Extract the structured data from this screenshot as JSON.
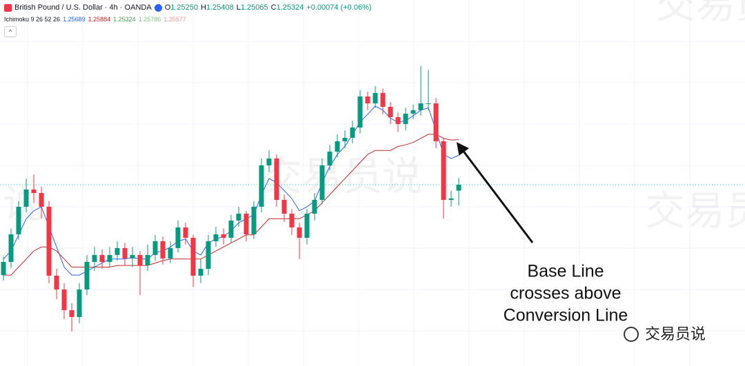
{
  "header": {
    "symbol": "British Pound / U.S. Dollar · 4h · OANDA",
    "ohlc": [
      {
        "label": "O",
        "value": "1.25250"
      },
      {
        "label": "H",
        "value": "1.25408"
      },
      {
        "label": "L",
        "value": "1.25065"
      },
      {
        "label": "C",
        "value": "1.25324"
      }
    ],
    "change": "+0.00074 (+0.06%)"
  },
  "indicator": {
    "name": "Ichimoku 9 26 52 26",
    "values": [
      {
        "value": "1.25689",
        "color": "#2962ff"
      },
      {
        "value": "1.25884",
        "color": "#c62828"
      },
      {
        "value": "1.25324",
        "color": "#43a047"
      },
      {
        "value": "1.25786",
        "color": "#81c784"
      },
      {
        "value": "1.25577",
        "color": "#ef9a9a"
      }
    ]
  },
  "chart_data": {
    "type": "candlestick",
    "ylim": [
      1.2307,
      1.2762
    ],
    "up_color": "#089981",
    "down_color": "#f23645",
    "open": [
      1.242,
      1.24364,
      1.24707,
      1.2505,
      1.25264,
      1.25221,
      1.2505,
      1.24193,
      1.24021,
      1.23764,
      1.23679,
      1.24021,
      1.24364,
      1.2445,
      1.24364,
      1.2445,
      1.24536,
      1.24407,
      1.2445,
      1.24321,
      1.2445,
      1.24621,
      1.24407,
      1.24536,
      1.24793,
      1.24664,
      1.24193,
      1.24278,
      1.24621,
      1.24707,
      1.24664,
      1.24878,
      1.24964,
      1.24707,
      1.2505,
      1.25564,
      1.2565,
      1.25135,
      1.24964,
      1.24793,
      1.24664,
      1.24964,
      1.25135,
      1.25564,
      1.25735,
      1.25864,
      1.25907,
      1.26035,
      1.26421,
      1.26335,
      1.26464,
      1.26292,
      1.26164,
      1.26078,
      1.26207,
      1.2625,
      1.26335,
      1.26335,
      1.25864,
      1.25135,
      1.2525
    ],
    "high": [
      1.2443,
      1.2478,
      1.2512,
      1.254,
      1.2545,
      1.253,
      1.2512,
      1.2428,
      1.241,
      1.2385,
      1.241,
      1.2445,
      1.2455,
      1.2452,
      1.2455,
      1.2462,
      1.246,
      1.2455,
      1.245,
      1.2458,
      1.247,
      1.2468,
      1.2462,
      1.2488,
      1.2485,
      1.247,
      1.244,
      1.247,
      1.248,
      1.2478,
      1.2495,
      1.2505,
      1.25,
      1.2512,
      1.2565,
      1.2575,
      1.257,
      1.252,
      1.2502,
      1.2485,
      1.2502,
      1.2522,
      1.2565,
      1.2582,
      1.2595,
      1.26,
      1.2612,
      1.265,
      1.2648,
      1.2655,
      1.2652,
      1.2635,
      1.2622,
      1.2628,
      1.2632,
      1.268,
      1.2675,
      1.264,
      1.259,
      1.2525,
      1.25408
    ],
    "low": [
      1.2413,
      1.2429,
      1.2464,
      1.2498,
      1.251,
      1.249,
      1.241,
      1.239,
      1.2365,
      1.235,
      1.236,
      1.2395,
      1.2425,
      1.2428,
      1.243,
      1.2438,
      1.2432,
      1.243,
      1.2395,
      1.2425,
      1.2438,
      1.2433,
      1.2435,
      1.2448,
      1.2458,
      1.2405,
      1.241,
      1.242,
      1.2455,
      1.2458,
      1.246,
      1.248,
      1.2462,
      1.2465,
      1.2498,
      1.2548,
      1.2505,
      1.2486,
      1.247,
      1.244,
      1.2458,
      1.2488,
      1.2508,
      1.255,
      1.2566,
      1.2578,
      1.2584,
      1.2596,
      1.2625,
      1.2628,
      1.262,
      1.2608,
      1.2598,
      1.26,
      1.2614,
      1.2618,
      1.2625,
      1.2578,
      1.249,
      1.2505,
      1.25065
    ],
    "close": [
      1.24364,
      1.24707,
      1.2505,
      1.25264,
      1.25221,
      1.2505,
      1.24193,
      1.24021,
      1.23764,
      1.23679,
      1.24021,
      1.24364,
      1.2445,
      1.24364,
      1.2445,
      1.24536,
      1.24407,
      1.2445,
      1.24321,
      1.2445,
      1.24621,
      1.24407,
      1.24536,
      1.24793,
      1.24664,
      1.24193,
      1.24278,
      1.24621,
      1.24707,
      1.24664,
      1.24878,
      1.24964,
      1.24707,
      1.2505,
      1.25564,
      1.2565,
      1.25135,
      1.24964,
      1.24793,
      1.24664,
      1.24964,
      1.25135,
      1.25564,
      1.25735,
      1.25864,
      1.25907,
      1.26035,
      1.26421,
      1.26335,
      1.26464,
      1.26292,
      1.26164,
      1.26078,
      1.26207,
      1.2625,
      1.26335,
      1.26335,
      1.25864,
      1.25135,
      1.25153,
      1.25324
    ],
    "lines": [
      {
        "color": "#2962ff",
        "values": [
          1.244,
          1.245,
          1.247,
          1.249,
          1.25,
          1.2505,
          1.248,
          1.2455,
          1.243,
          1.242,
          1.242,
          1.2425,
          1.243,
          1.2435,
          1.244,
          1.244,
          1.244,
          1.2442,
          1.244,
          1.244,
          1.2448,
          1.245,
          1.2455,
          1.2462,
          1.2465,
          1.245,
          1.2445,
          1.246,
          1.2465,
          1.2468,
          1.2475,
          1.2485,
          1.249,
          1.2495,
          1.252,
          1.254,
          1.2535,
          1.2525,
          1.2515,
          1.25,
          1.2505,
          1.2512,
          1.2535,
          1.2555,
          1.257,
          1.258,
          1.2595,
          1.261,
          1.262,
          1.263,
          1.2625,
          1.2615,
          1.261,
          1.2612,
          1.2618,
          1.2625,
          1.2628,
          1.26,
          1.257,
          1.2565,
          1.25689
        ]
      },
      {
        "color": "#c62828",
        "values": [
          1.242,
          1.242,
          1.243,
          1.244,
          1.245,
          1.2455,
          1.2455,
          1.245,
          1.244,
          1.243,
          1.243,
          1.243,
          1.243,
          1.243,
          1.243,
          1.2432,
          1.2432,
          1.2432,
          1.2432,
          1.2432,
          1.2435,
          1.2438,
          1.244,
          1.244,
          1.244,
          1.244,
          1.244,
          1.2445,
          1.245,
          1.2455,
          1.246,
          1.2465,
          1.247,
          1.247,
          1.248,
          1.249,
          1.249,
          1.249,
          1.249,
          1.249,
          1.2495,
          1.25,
          1.251,
          1.252,
          1.253,
          1.254,
          1.255,
          1.256,
          1.257,
          1.2575,
          1.2575,
          1.2575,
          1.258,
          1.2582,
          1.2585,
          1.259,
          1.2595,
          1.2595,
          1.259,
          1.2588,
          1.25884
        ]
      }
    ],
    "annotation": [
      "Base Line",
      "crosses above",
      "Conversion Line"
    ],
    "watermark": "交易员说"
  }
}
